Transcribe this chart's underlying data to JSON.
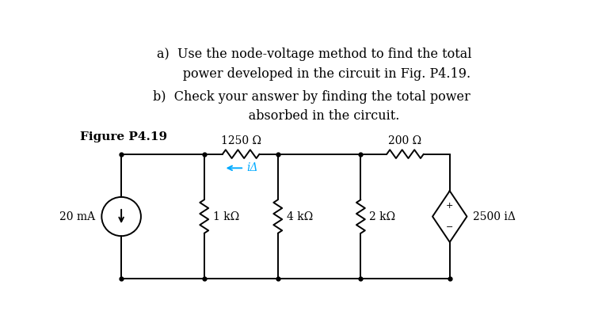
{
  "text_a_line1": "a)  Use the node-voltage method to find the total",
  "text_a_line2": "      power developed in the circuit in Fig. P4.19.",
  "text_b_line1": "b)  Check your answer by finding the total power",
  "text_b_line2": "      absorbed in the circuit.",
  "figure_label": "Figure P4.19",
  "res1_label": "1250 Ω",
  "res2_label": "200 Ω",
  "res3_label": "1 kΩ",
  "res4_label": "4 kΩ",
  "res5_label": "2 kΩ",
  "cs_label": "20 mA",
  "vs_label": "2500 iΔ",
  "ia_label": "iΔ",
  "ia_color": "#00aaff",
  "background": "#ffffff",
  "line_color": "#000000",
  "font_size_text": 11.5,
  "font_size_label": 10,
  "font_size_figure": 11
}
